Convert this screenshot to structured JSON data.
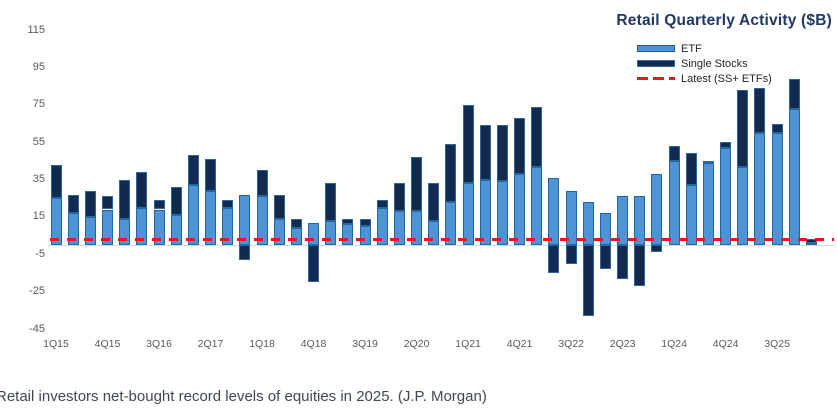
{
  "chart_data": {
    "type": "bar",
    "stacked": true,
    "title": "Retail Quarterly Activity ($B)",
    "ylim": [
      -45,
      115
    ],
    "yticks": [
      115,
      95,
      75,
      55,
      35,
      15,
      -5,
      -25,
      -45
    ],
    "grid": false,
    "legend_position": "top-right",
    "xtick_every": 3,
    "categories": [
      "1Q15",
      "2Q15",
      "3Q15",
      "4Q15",
      "1Q16",
      "2Q16",
      "3Q16",
      "4Q16",
      "1Q17",
      "2Q17",
      "3Q17",
      "4Q17",
      "1Q18",
      "2Q18",
      "3Q18",
      "4Q18",
      "1Q19",
      "2Q19",
      "3Q19",
      "4Q19",
      "1Q20",
      "2Q20",
      "3Q20",
      "4Q20",
      "1Q21",
      "2Q21",
      "3Q21",
      "4Q21",
      "1Q22",
      "2Q22",
      "3Q22",
      "4Q22",
      "1Q23",
      "2Q23",
      "3Q23",
      "4Q23",
      "1Q24",
      "2Q24",
      "3Q24",
      "4Q24",
      "1Q25",
      "2Q25",
      "3Q25",
      "4Q25",
      "1Q26"
    ],
    "xtick_labels": [
      "1Q15",
      "4Q15",
      "3Q16",
      "2Q17",
      "1Q18",
      "4Q18",
      "3Q19",
      "2Q20",
      "1Q21",
      "4Q21",
      "3Q22",
      "2Q23",
      "1Q24",
      "4Q24",
      "3Q25"
    ],
    "series": [
      {
        "name": "ETF",
        "color": "#4f93d6",
        "values": [
          25,
          17,
          15,
          19,
          14,
          20,
          19,
          16,
          32,
          29,
          20,
          27,
          26,
          14,
          9,
          12,
          13,
          11,
          10,
          20,
          18,
          18,
          13,
          23,
          33,
          35,
          34,
          38,
          42,
          36,
          29,
          23,
          17,
          26,
          26,
          38,
          45,
          32,
          44,
          52,
          42,
          60,
          60,
          73,
          1
        ]
      },
      {
        "name": "Single Stocks",
        "color": "#122a4d",
        "values": [
          18,
          10,
          14,
          7,
          21,
          19,
          5,
          15,
          16,
          17,
          4,
          -8,
          14,
          13,
          5,
          -20,
          20,
          3,
          4,
          4,
          15,
          29,
          20,
          31,
          42,
          29,
          30,
          30,
          32,
          -15,
          -10,
          -38,
          -13,
          -18,
          -22,
          -4,
          8,
          17,
          1,
          3,
          41,
          24,
          5,
          16,
          2
        ]
      }
    ],
    "reference_line": {
      "label": "Latest (SS+ ETFs)",
      "value": 3,
      "color": "#f01414",
      "style": "dashed"
    }
  },
  "footer": {
    "text": "Retail investors net-bought record levels of equities in 2025. (J.P. Morgan)"
  }
}
